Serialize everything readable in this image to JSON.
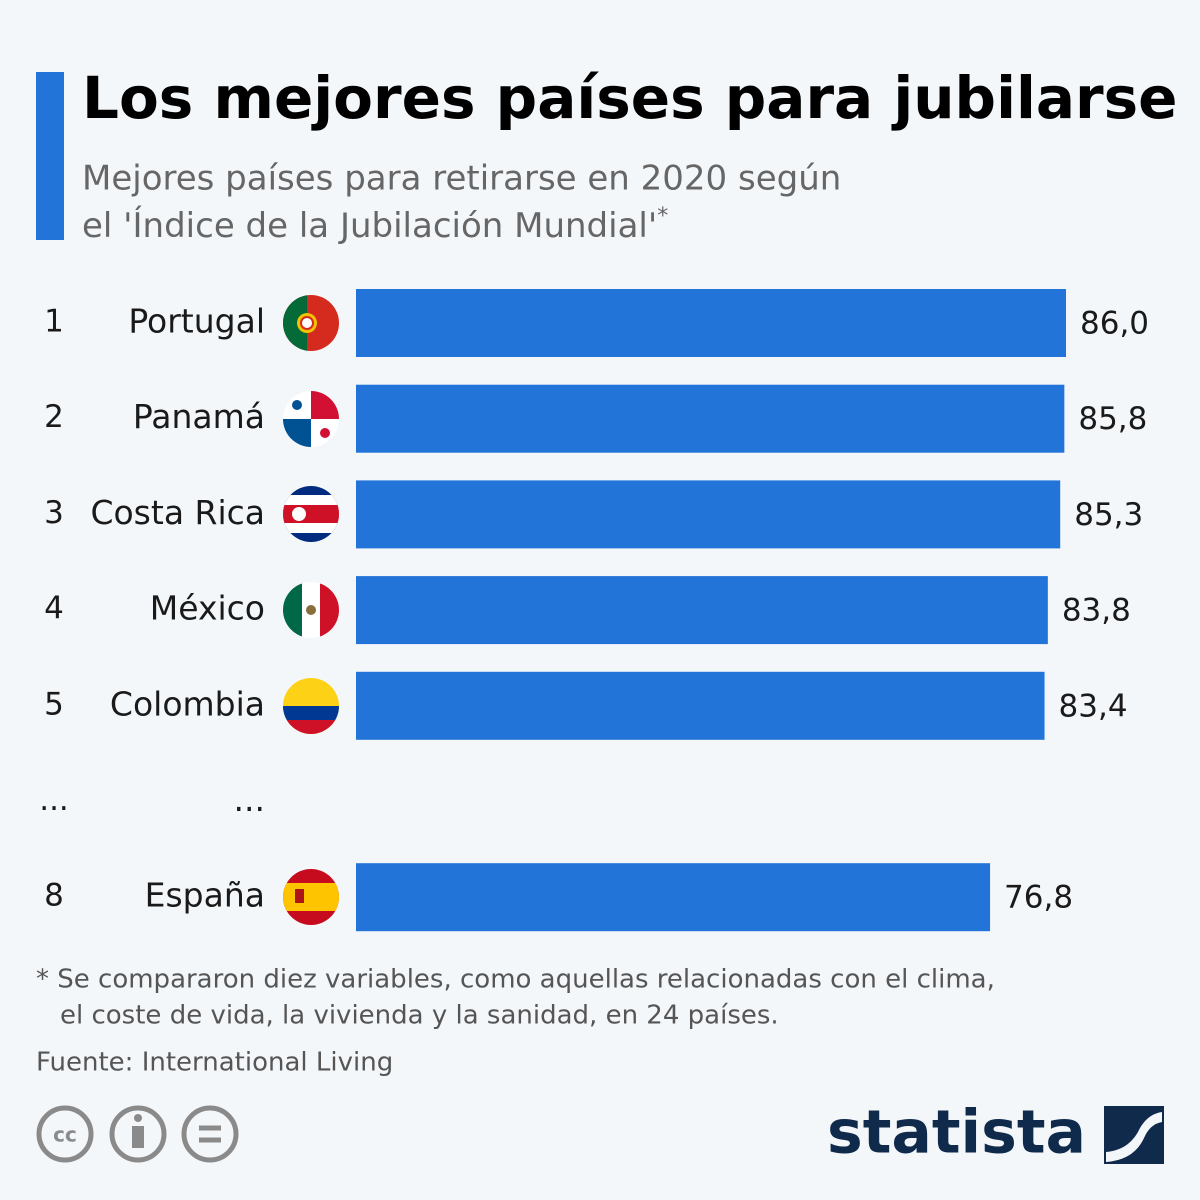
{
  "chart_data": {
    "type": "bar",
    "title": "Los mejores países para jubilarse",
    "subtitle": [
      "Mejores países para retirarse en 2020 según",
      "el 'Índice de la Jubilación Mundial'",
      "*"
    ],
    "ranks": [
      "1",
      "2",
      "3",
      "4",
      "5",
      "...",
      "8"
    ],
    "categories": [
      "Portugal",
      "Panamá",
      "Costa Rica",
      "México",
      "Colombia",
      "...",
      "España"
    ],
    "values": [
      86.0,
      85.8,
      85.3,
      83.8,
      83.4,
      null,
      76.8
    ],
    "value_labels": [
      "86,0",
      "85,8",
      "85,3",
      "83,8",
      "83,4",
      null,
      "76,8"
    ],
    "color": "#2374d8",
    "footnote": [
      "* Se compararon diez variables, como aquellas relacionadas con el clima,",
      "el coste de vida, la vivienda y la sanidad, en 24 países."
    ],
    "source": "Fuente: International Living",
    "brand": "statista"
  }
}
